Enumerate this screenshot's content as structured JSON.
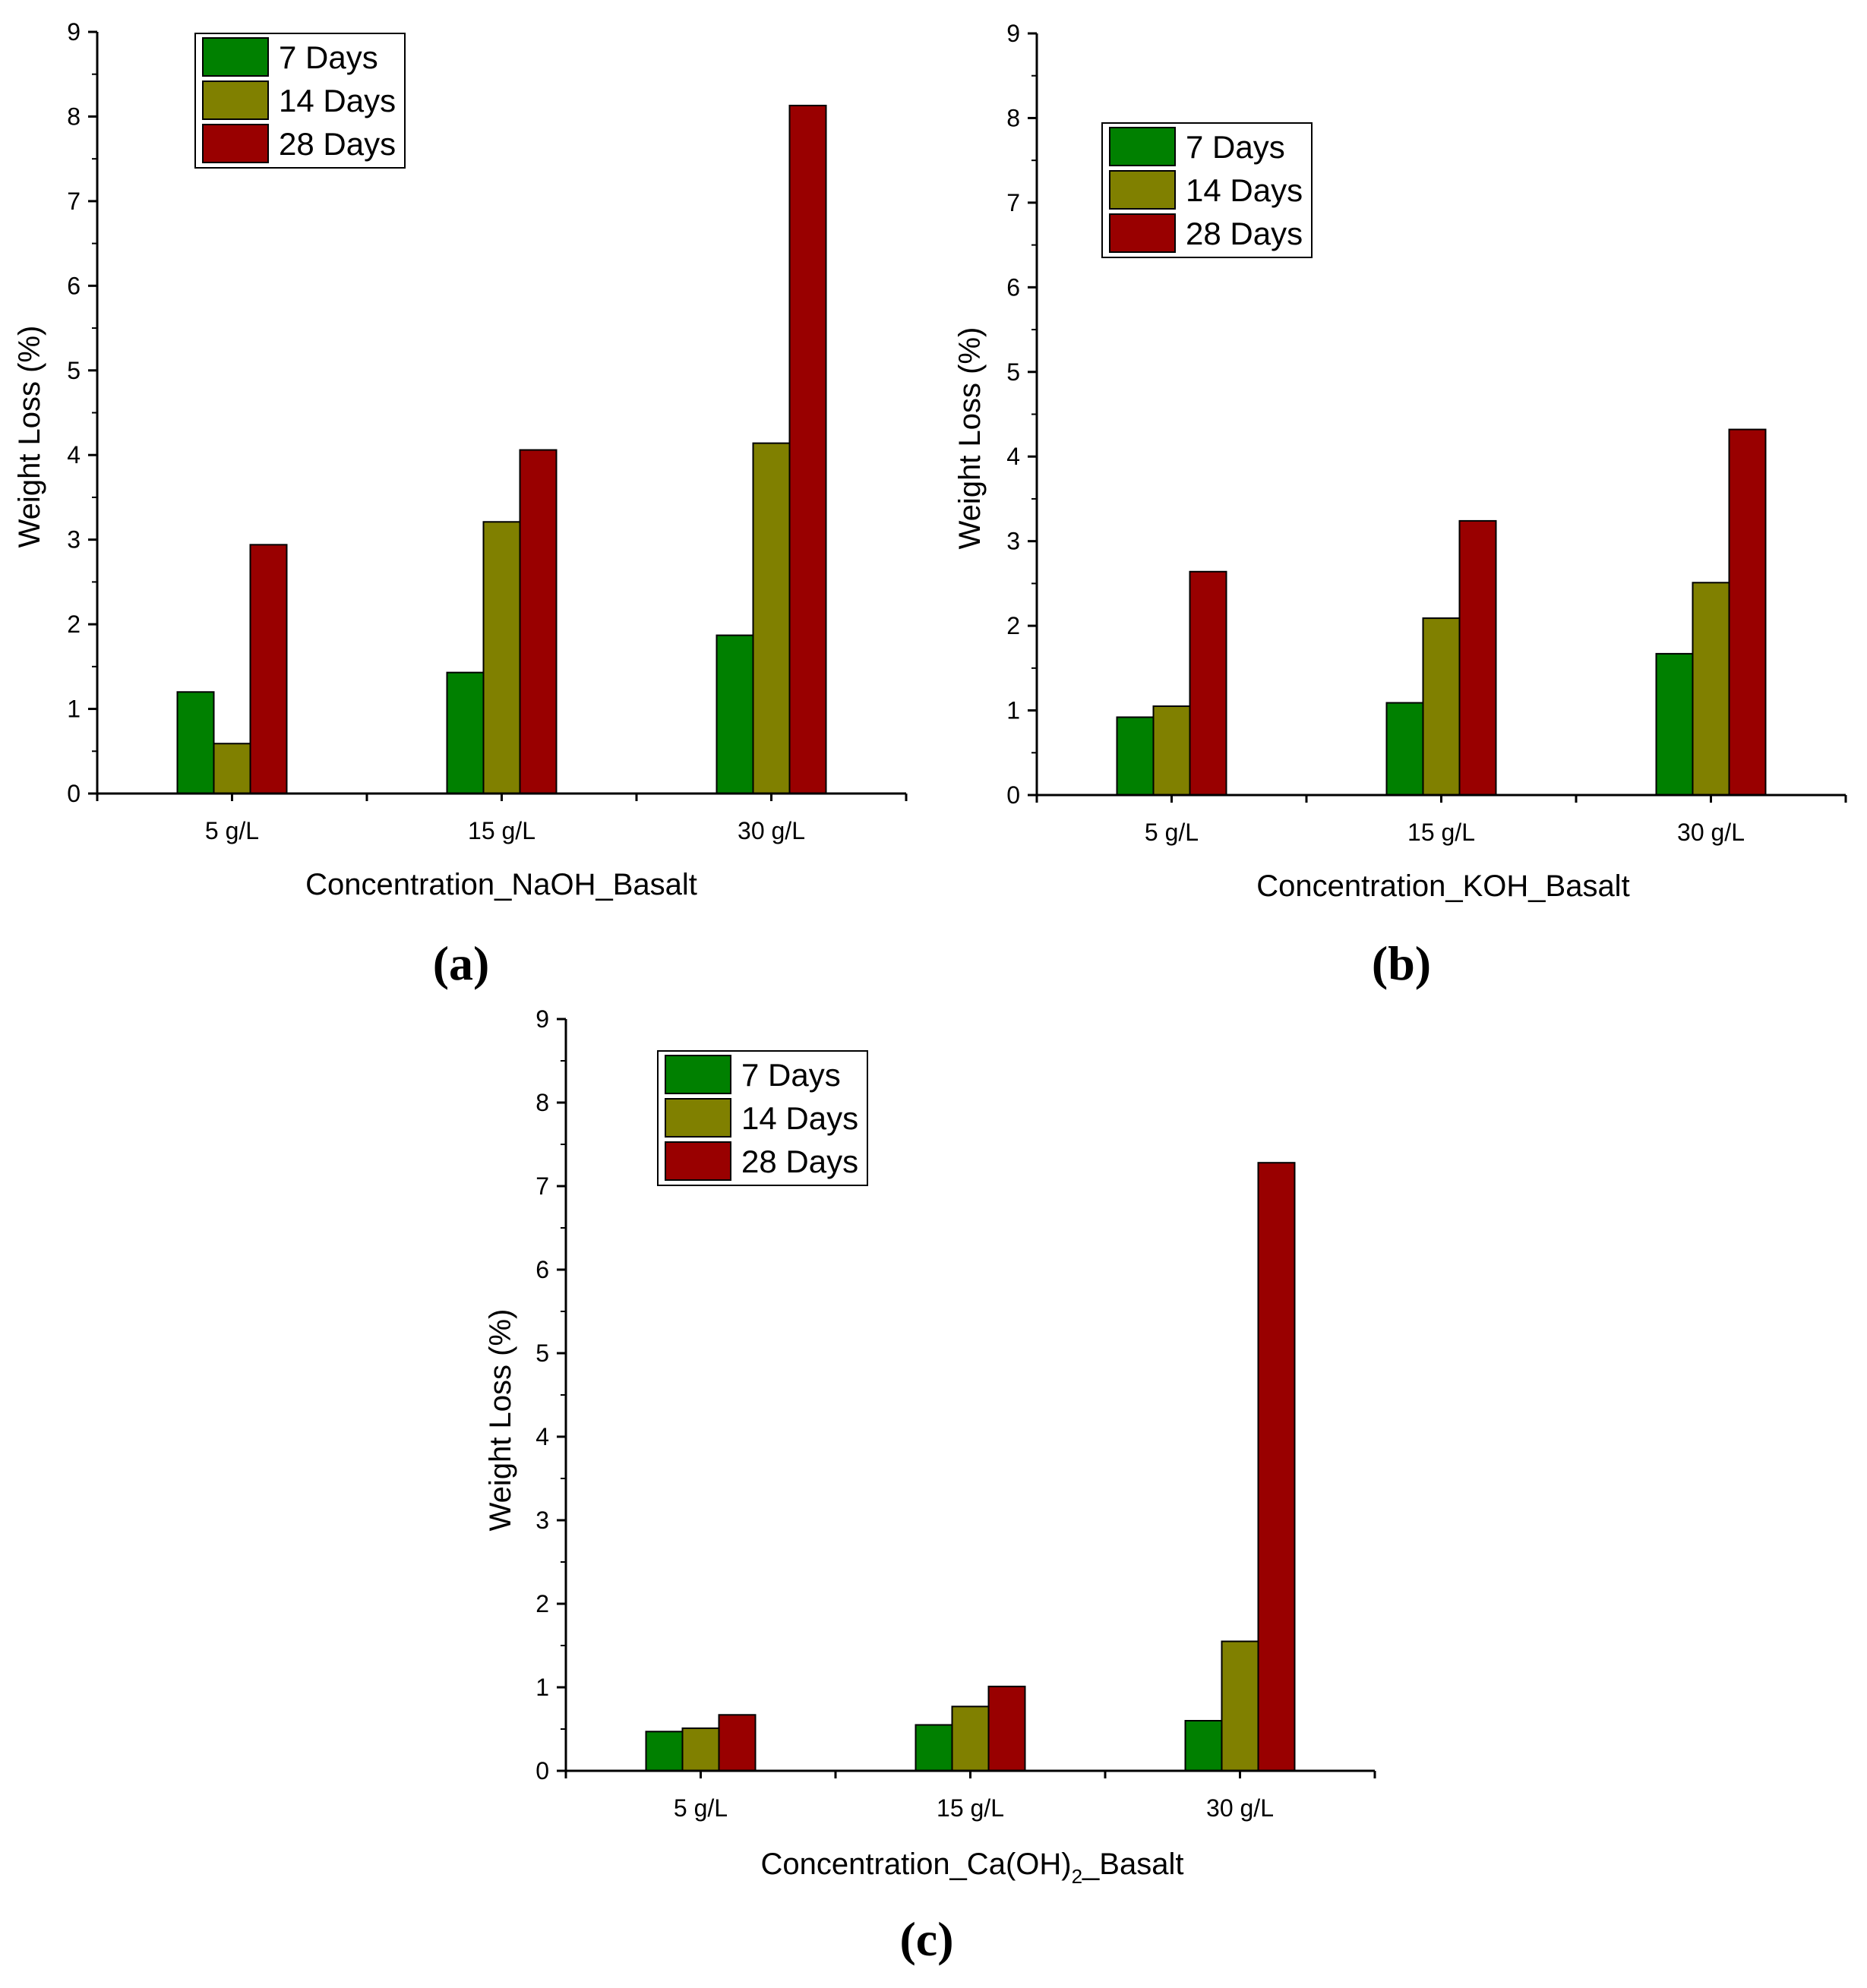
{
  "legend_colors": {
    "7 Days": "#008000",
    "14 Days": "#808000",
    "28 Days": "#990000"
  },
  "chart_data": [
    {
      "panel": "(a)",
      "type": "bar",
      "categories": [
        "5 g/L",
        "15 g/L",
        "30 g/L"
      ],
      "series": [
        {
          "name": "7 Days",
          "values": [
            1.2,
            1.43,
            1.87
          ]
        },
        {
          "name": "14 Days",
          "values": [
            0.59,
            3.21,
            4.14
          ]
        },
        {
          "name": "28 Days",
          "values": [
            2.94,
            4.06,
            8.13
          ]
        }
      ],
      "xlabel": "Concentration_NaOH_Basalt",
      "ylabel": "Weight Loss (%)",
      "ylim": [
        0,
        9
      ],
      "yticks": [
        "0",
        "1",
        "2",
        "3",
        "4",
        "5",
        "6",
        "7",
        "8",
        "9"
      ],
      "legend_position": "top-left"
    },
    {
      "panel": "(b)",
      "type": "bar",
      "categories": [
        "5 g/L",
        "15 g/L",
        "30 g/L"
      ],
      "series": [
        {
          "name": "7 Days",
          "values": [
            0.92,
            1.09,
            1.67
          ]
        },
        {
          "name": "14 Days",
          "values": [
            1.05,
            2.09,
            2.51
          ]
        },
        {
          "name": "28 Days",
          "values": [
            2.64,
            3.24,
            4.32
          ]
        }
      ],
      "xlabel": "Concentration_KOH_Basalt",
      "ylabel": "Weight Loss (%)",
      "ylim": [
        0,
        9
      ],
      "yticks": [
        "0",
        "1",
        "2",
        "3",
        "4",
        "5",
        "6",
        "7",
        "8",
        "9"
      ],
      "legend_position": "top-left"
    },
    {
      "panel": "(c)",
      "type": "bar",
      "categories": [
        "5 g/L",
        "15 g/L",
        "30 g/L"
      ],
      "series": [
        {
          "name": "7 Days",
          "values": [
            0.47,
            0.55,
            0.6
          ]
        },
        {
          "name": "14 Days",
          "values": [
            0.51,
            0.77,
            1.55
          ]
        },
        {
          "name": "28 Days",
          "values": [
            0.67,
            1.01,
            7.28
          ]
        }
      ],
      "xlabel": "Concentration_Ca(OH)",
      "xlabel_subscript": "2",
      "xlabel_suffix": "_Basalt",
      "ylabel": "Weight Loss (%)",
      "ylim": [
        0,
        9
      ],
      "yticks": [
        "0",
        "1",
        "2",
        "3",
        "4",
        "5",
        "6",
        "7",
        "8",
        "9"
      ],
      "legend_position": "top-left"
    }
  ]
}
